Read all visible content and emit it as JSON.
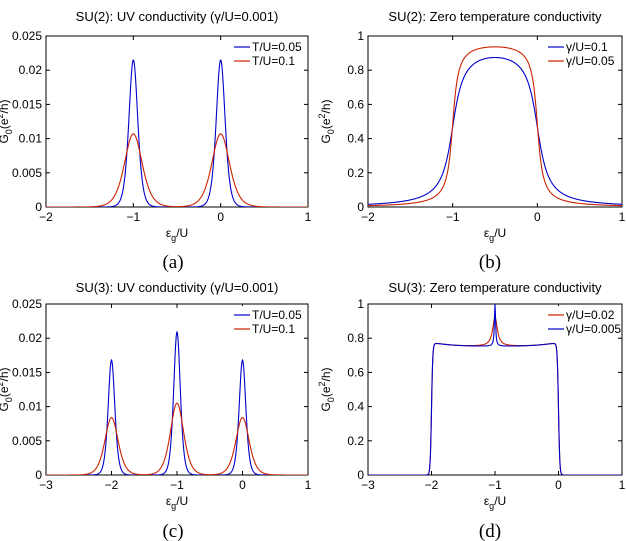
{
  "colors": {
    "blue": "#0000cc",
    "red": "#cc2200"
  },
  "chart_data": [
    {
      "panel": "a",
      "type": "line",
      "title": "SU(2): UV conductivity (γ/U=0.001)",
      "xlabel_main": "ε",
      "xlabel_sub": "g",
      "xlabel_tail": "/U",
      "ylabel_main": "G",
      "ylabel_sub": "0",
      "ylabel_tail": "(e",
      "ylabel_sup": "2",
      "ylabel_end": "/h)",
      "xlim": [
        -2,
        1
      ],
      "ylim": [
        0,
        0.025
      ],
      "xticks": [
        -2,
        -1,
        0,
        1
      ],
      "xtick_labels": [
        "−2",
        "−1",
        "0",
        "1"
      ],
      "yticks": [
        0,
        0.005,
        0.01,
        0.015,
        0.02,
        0.025
      ],
      "ytick_labels": [
        "0",
        "0.005",
        "0.01",
        "0.015",
        "0.02",
        "0.025"
      ],
      "grid": false,
      "legend_position": "top-right",
      "caption": "(a)",
      "series": [
        {
          "name": "T/U=0.05",
          "color": "#0000cc",
          "shape": "peaks",
          "centers": [
            -1,
            0
          ],
          "height": 0.0215,
          "width": 0.068
        },
        {
          "name": "T/U=0.1",
          "color": "#cc2200",
          "shape": "peaks",
          "centers": [
            -1,
            0
          ],
          "height": 0.0107,
          "width": 0.135
        }
      ]
    },
    {
      "panel": "b",
      "type": "line",
      "title": "SU(2): Zero temperature conductivity",
      "xlabel_main": "ε",
      "xlabel_sub": "g",
      "xlabel_tail": "/U",
      "ylabel_main": "G",
      "ylabel_sub": "0",
      "ylabel_tail": "(e",
      "ylabel_sup": "2",
      "ylabel_end": "/h)",
      "xlim": [
        -2,
        1
      ],
      "ylim": [
        0,
        1
      ],
      "xticks": [
        -2,
        -1,
        0,
        1
      ],
      "xtick_labels": [
        "−2",
        "−1",
        "0",
        "1"
      ],
      "yticks": [
        0,
        0.2,
        0.4,
        0.6,
        0.8,
        1
      ],
      "ytick_labels": [
        "0",
        "0.2",
        "0.4",
        "0.6",
        "0.8",
        "1"
      ],
      "grid": false,
      "legend_position": "top-right",
      "caption": "(b)",
      "series": [
        {
          "name": "γ/U=0.1",
          "color": "#0000cc",
          "shape": "plateau",
          "edges": [
            -1,
            0
          ],
          "peak_value": 1.0,
          "gamma": 0.1
        },
        {
          "name": "γ/U=0.05",
          "color": "#cc2200",
          "shape": "plateau",
          "edges": [
            -1,
            0
          ],
          "peak_value": 1.0,
          "gamma": 0.05
        }
      ]
    },
    {
      "panel": "c",
      "type": "line",
      "title": "SU(3): UV conductivity (γ/U=0.001)",
      "xlabel_main": "ε",
      "xlabel_sub": "g",
      "xlabel_tail": "/U",
      "ylabel_main": "G",
      "ylabel_sub": "0",
      "ylabel_tail": "(e",
      "ylabel_sup": "2",
      "ylabel_end": "/h)",
      "xlim": [
        -3,
        1
      ],
      "ylim": [
        0,
        0.025
      ],
      "xticks": [
        -3,
        -2,
        -1,
        0,
        1
      ],
      "xtick_labels": [
        "−3",
        "−2",
        "−1",
        "0",
        "1"
      ],
      "yticks": [
        0,
        0.005,
        0.01,
        0.015,
        0.02,
        0.025
      ],
      "ytick_labels": [
        "0",
        "0.005",
        "0.01",
        "0.015",
        "0.02",
        "0.025"
      ],
      "grid": false,
      "legend_position": "top-right",
      "caption": "(c)",
      "series": [
        {
          "name": "T/U=0.05",
          "color": "#0000cc",
          "shape": "peaks",
          "centers": [
            -2,
            -1,
            0
          ],
          "heights": [
            0.0168,
            0.0209,
            0.0168
          ],
          "width": 0.068
        },
        {
          "name": "T/U=0.1",
          "color": "#cc2200",
          "shape": "peaks",
          "centers": [
            -2,
            -1,
            0
          ],
          "heights": [
            0.0084,
            0.0105,
            0.0084
          ],
          "width": 0.135
        }
      ]
    },
    {
      "panel": "d",
      "type": "line",
      "title": "SU(3): Zero temperature conductivity",
      "xlabel_main": "ε",
      "xlabel_sub": "g",
      "xlabel_tail": "/U",
      "ylabel_main": "G",
      "ylabel_sub": "0",
      "ylabel_tail": "(e",
      "ylabel_sup": "2",
      "ylabel_end": "/h)",
      "xlim": [
        -3,
        1
      ],
      "ylim": [
        0,
        1
      ],
      "xticks": [
        -3,
        -2,
        -1,
        0,
        1
      ],
      "xtick_labels": [
        "−3",
        "−2",
        "−1",
        "0",
        "1"
      ],
      "yticks": [
        0,
        0.2,
        0.4,
        0.6,
        0.8,
        1
      ],
      "ytick_labels": [
        "0",
        "0.2",
        "0.4",
        "0.6",
        "0.8",
        "1"
      ],
      "grid": false,
      "legend_position": "top-right",
      "caption": "(d)",
      "series": [
        {
          "name": "γ/U=0.02",
          "color": "#cc2200",
          "shape": "su3plateau",
          "edges": [
            -2,
            0
          ],
          "plateau_value": 0.75,
          "peak_value": 0.92,
          "gamma": 0.02
        },
        {
          "name": "γ/U=0.005",
          "color": "#0000cc",
          "shape": "su3plateau",
          "edges": [
            -2,
            0
          ],
          "plateau_value": 0.75,
          "peak_value": 1.0,
          "gamma": 0.005
        }
      ]
    }
  ]
}
